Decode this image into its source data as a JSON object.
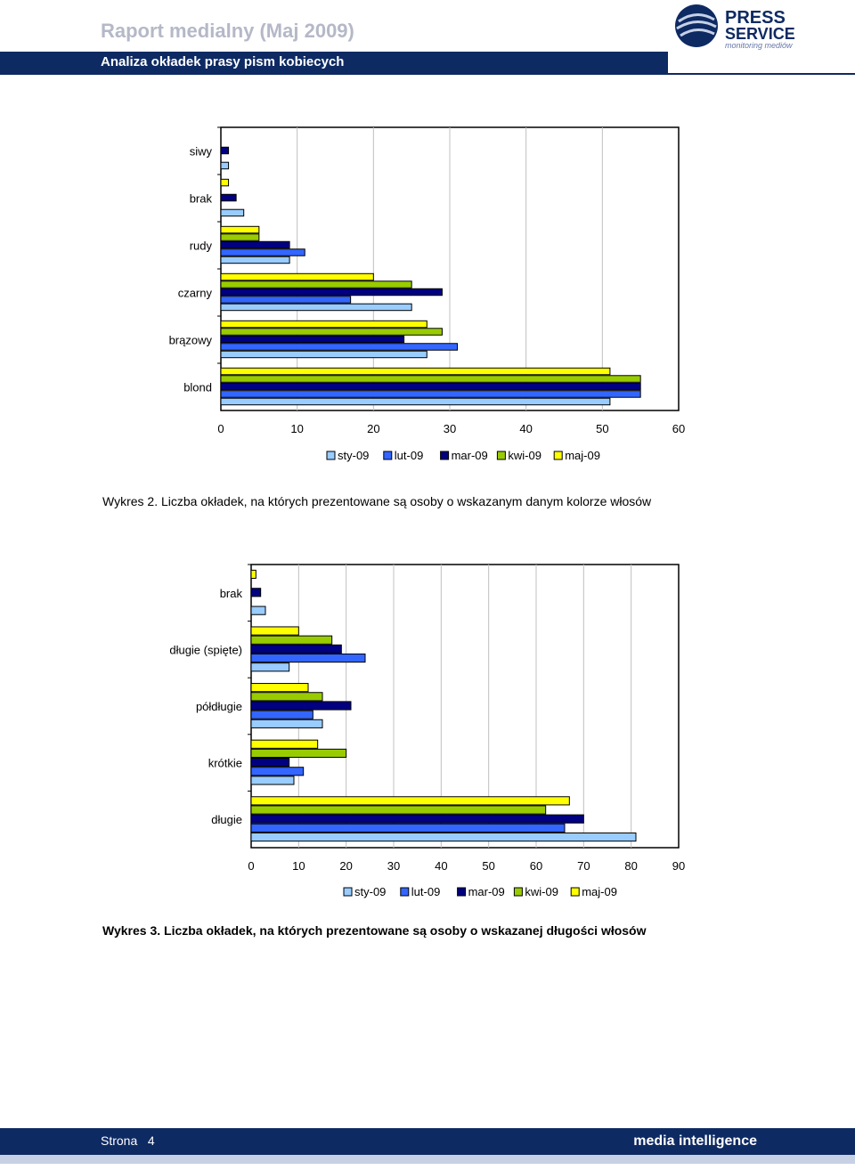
{
  "header": {
    "title": "Raport medialny (Maj 2009)",
    "subtitle": "Analiza okładek prasy pism kobiecych"
  },
  "logo": {
    "line1": "PRESS",
    "line2": "SERVICE",
    "tagline": "monitoring mediów"
  },
  "colors": {
    "sty-09": "#99ccff",
    "lut-09": "#3366ff",
    "mar-09": "#000080",
    "kwi-09": "#99cc00",
    "maj-09": "#ffff00",
    "header": "#0e2a63"
  },
  "chart_data": [
    {
      "type": "bar",
      "orientation": "horizontal",
      "categories": [
        "siwy",
        "brak",
        "rudy",
        "czarny",
        "brązowy",
        "blond"
      ],
      "series": [
        {
          "name": "sty-09",
          "values": [
            1,
            3,
            9,
            25,
            27,
            51
          ]
        },
        {
          "name": "lut-09",
          "values": [
            0,
            0,
            11,
            17,
            31,
            55
          ]
        },
        {
          "name": "mar-09",
          "values": [
            1,
            2,
            9,
            29,
            24,
            55
          ]
        },
        {
          "name": "kwi-09",
          "values": [
            0,
            0,
            5,
            25,
            29,
            55
          ]
        },
        {
          "name": "maj-09",
          "values": [
            0,
            1,
            5,
            20,
            27,
            51
          ]
        }
      ],
      "xlim": [
        0,
        60
      ],
      "xticks": [
        "0",
        "10",
        "20",
        "30",
        "40",
        "50",
        "60"
      ],
      "legend": [
        "sty-09",
        "lut-09",
        "mar-09",
        "kwi-09",
        "maj-09"
      ],
      "legend_position": "bottom",
      "caption_label": "Wykres 2.",
      "caption_text": "Liczba okładek, na których prezentowane są osoby o wskazanym danym kolorze włosów"
    },
    {
      "type": "bar",
      "orientation": "horizontal",
      "categories": [
        "brak",
        "długie (spięte)",
        "półdługie",
        "krótkie",
        "długie"
      ],
      "series": [
        {
          "name": "sty-09",
          "values": [
            3,
            8,
            15,
            9,
            81
          ]
        },
        {
          "name": "lut-09",
          "values": [
            0,
            24,
            13,
            11,
            66
          ]
        },
        {
          "name": "mar-09",
          "values": [
            2,
            19,
            21,
            8,
            70
          ]
        },
        {
          "name": "kwi-09",
          "values": [
            0,
            17,
            15,
            20,
            62
          ]
        },
        {
          "name": "maj-09",
          "values": [
            1,
            10,
            12,
            14,
            67
          ]
        }
      ],
      "xlim": [
        0,
        90
      ],
      "xticks": [
        "0",
        "10",
        "20",
        "30",
        "40",
        "50",
        "60",
        "70",
        "80",
        "90"
      ],
      "legend": [
        "sty-09",
        "lut-09",
        "mar-09",
        "kwi-09",
        "maj-09"
      ],
      "legend_position": "bottom",
      "caption_label": "Wykres 3.",
      "caption_text": "Liczba okładek, na których prezentowane są osoby o wskazanej długości włosów"
    }
  ],
  "footer": {
    "page_label": "Strona",
    "page_number": "4",
    "brand": "media intelligence"
  }
}
